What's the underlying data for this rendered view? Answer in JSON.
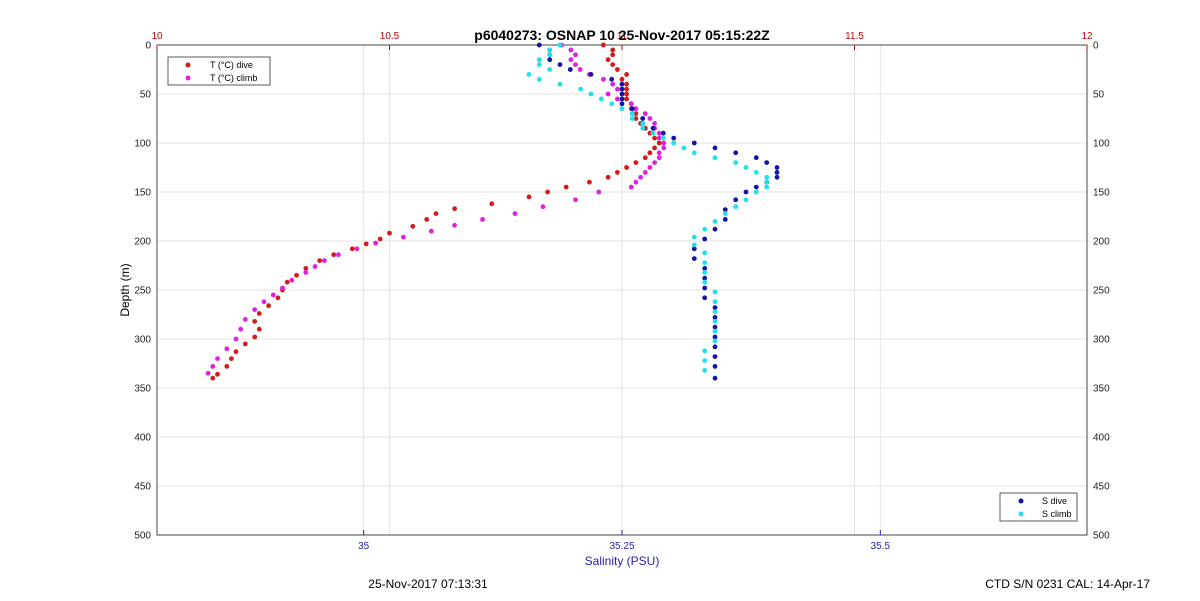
{
  "chart_data": {
    "type": "scatter",
    "title": "p6040273: OSNAP 10 25-Nov-2017 05:15:22Z",
    "xlabel_bottom": "Salinity (PSU)",
    "ylabel": "Depth (m)",
    "footer_left": "25-Nov-2017 07:13:31",
    "footer_right": "CTD S/N 0231  CAL: 14-Apr-17",
    "grid": true,
    "y_reversed": true,
    "ylim": [
      0,
      500
    ],
    "y_ticks": [
      "0",
      "50",
      "100",
      "150",
      "200",
      "250",
      "300",
      "350",
      "400",
      "450",
      "500"
    ],
    "temp_axis": {
      "range": [
        10,
        12
      ],
      "ticks": [
        10,
        10.5,
        11,
        11.5,
        12
      ],
      "tick_labels": [
        "10",
        "10.5",
        "11",
        "11.5",
        "12"
      ],
      "color": "#cc0000"
    },
    "sal_axis": {
      "range": [
        34.8,
        35.7
      ],
      "ticks": [
        35,
        35.25,
        35.5
      ],
      "tick_labels": [
        "35",
        "35.25",
        "35.5"
      ],
      "color": "#1f1fb4"
    },
    "legends": [
      {
        "placement": "top-left",
        "entries": [
          "T (°C) dive",
          "T (°C) climb"
        ]
      },
      {
        "placement": "bottom-right",
        "entries": [
          "S dive",
          "S climb"
        ]
      }
    ],
    "series": [
      {
        "name": "T (°C) dive",
        "axis": "temp",
        "color": "#d61a1a",
        "points": [
          [
            10.96,
            0
          ],
          [
            10.98,
            5
          ],
          [
            10.98,
            10
          ],
          [
            10.97,
            15
          ],
          [
            10.98,
            20
          ],
          [
            10.99,
            25
          ],
          [
            11.01,
            30
          ],
          [
            11.0,
            35
          ],
          [
            11.01,
            40
          ],
          [
            11.01,
            45
          ],
          [
            11.01,
            50
          ],
          [
            11.01,
            55
          ],
          [
            11.02,
            60
          ],
          [
            11.02,
            65
          ],
          [
            11.03,
            70
          ],
          [
            11.03,
            75
          ],
          [
            11.04,
            80
          ],
          [
            11.05,
            85
          ],
          [
            11.06,
            90
          ],
          [
            11.07,
            95
          ],
          [
            11.08,
            100
          ],
          [
            11.07,
            105
          ],
          [
            11.06,
            110
          ],
          [
            11.05,
            115
          ],
          [
            11.03,
            120
          ],
          [
            11.01,
            125
          ],
          [
            10.99,
            130
          ],
          [
            10.97,
            135
          ],
          [
            10.93,
            140
          ],
          [
            10.88,
            145
          ],
          [
            10.84,
            150
          ],
          [
            10.8,
            155
          ],
          [
            10.72,
            162
          ],
          [
            10.64,
            167
          ],
          [
            10.6,
            172
          ],
          [
            10.58,
            178
          ],
          [
            10.55,
            185
          ],
          [
            10.5,
            192
          ],
          [
            10.48,
            198
          ],
          [
            10.45,
            203
          ],
          [
            10.42,
            208
          ],
          [
            10.38,
            214
          ],
          [
            10.35,
            220
          ],
          [
            10.32,
            228
          ],
          [
            10.3,
            235
          ],
          [
            10.28,
            242
          ],
          [
            10.27,
            250
          ],
          [
            10.26,
            258
          ],
          [
            10.24,
            266
          ],
          [
            10.22,
            274
          ],
          [
            10.21,
            282
          ],
          [
            10.22,
            290
          ],
          [
            10.21,
            298
          ],
          [
            10.19,
            305
          ],
          [
            10.17,
            313
          ],
          [
            10.16,
            320
          ],
          [
            10.15,
            328
          ],
          [
            10.13,
            336
          ],
          [
            10.12,
            340
          ]
        ]
      },
      {
        "name": "T (°C) climb",
        "axis": "temp",
        "color": "#e020e0",
        "points": [
          [
            10.87,
            0
          ],
          [
            10.89,
            5
          ],
          [
            10.9,
            10
          ],
          [
            10.89,
            15
          ],
          [
            10.9,
            20
          ],
          [
            10.91,
            25
          ],
          [
            10.93,
            30
          ],
          [
            10.96,
            35
          ],
          [
            10.98,
            40
          ],
          [
            10.99,
            45
          ],
          [
            10.97,
            50
          ],
          [
            10.99,
            55
          ],
          [
            11.02,
            60
          ],
          [
            11.03,
            65
          ],
          [
            11.05,
            70
          ],
          [
            11.06,
            75
          ],
          [
            11.07,
            80
          ],
          [
            11.07,
            85
          ],
          [
            11.08,
            90
          ],
          [
            11.08,
            95
          ],
          [
            11.09,
            100
          ],
          [
            11.09,
            105
          ],
          [
            11.08,
            110
          ],
          [
            11.08,
            115
          ],
          [
            11.07,
            120
          ],
          [
            11.06,
            125
          ],
          [
            11.05,
            130
          ],
          [
            11.04,
            135
          ],
          [
            11.03,
            140
          ],
          [
            11.02,
            145
          ],
          [
            10.95,
            150
          ],
          [
            10.9,
            158
          ],
          [
            10.83,
            165
          ],
          [
            10.77,
            172
          ],
          [
            10.7,
            178
          ],
          [
            10.64,
            184
          ],
          [
            10.59,
            190
          ],
          [
            10.53,
            196
          ],
          [
            10.47,
            202
          ],
          [
            10.43,
            208
          ],
          [
            10.39,
            214
          ],
          [
            10.36,
            220
          ],
          [
            10.34,
            226
          ],
          [
            10.32,
            232
          ],
          [
            10.29,
            240
          ],
          [
            10.27,
            248
          ],
          [
            10.25,
            255
          ],
          [
            10.23,
            262
          ],
          [
            10.21,
            270
          ],
          [
            10.19,
            280
          ],
          [
            10.18,
            290
          ],
          [
            10.17,
            300
          ],
          [
            10.15,
            310
          ],
          [
            10.13,
            320
          ],
          [
            10.12,
            328
          ],
          [
            10.11,
            335
          ]
        ]
      },
      {
        "name": "S dive",
        "axis": "sal",
        "color": "#1414a8",
        "points": [
          [
            35.17,
            0
          ],
          [
            35.18,
            5
          ],
          [
            35.18,
            10
          ],
          [
            35.18,
            15
          ],
          [
            35.19,
            20
          ],
          [
            35.2,
            25
          ],
          [
            35.22,
            30
          ],
          [
            35.24,
            35
          ],
          [
            35.25,
            40
          ],
          [
            35.25,
            45
          ],
          [
            35.25,
            50
          ],
          [
            35.25,
            55
          ],
          [
            35.25,
            60
          ],
          [
            35.26,
            65
          ],
          [
            35.26,
            70
          ],
          [
            35.27,
            75
          ],
          [
            35.27,
            80
          ],
          [
            35.28,
            85
          ],
          [
            35.29,
            90
          ],
          [
            35.3,
            95
          ],
          [
            35.32,
            100
          ],
          [
            35.34,
            105
          ],
          [
            35.36,
            110
          ],
          [
            35.38,
            115
          ],
          [
            35.39,
            120
          ],
          [
            35.4,
            125
          ],
          [
            35.4,
            130
          ],
          [
            35.4,
            135
          ],
          [
            35.39,
            140
          ],
          [
            35.38,
            145
          ],
          [
            35.37,
            150
          ],
          [
            35.36,
            158
          ],
          [
            35.35,
            168
          ],
          [
            35.35,
            178
          ],
          [
            35.34,
            188
          ],
          [
            35.33,
            198
          ],
          [
            35.32,
            208
          ],
          [
            35.32,
            218
          ],
          [
            35.33,
            228
          ],
          [
            35.33,
            238
          ],
          [
            35.33,
            248
          ],
          [
            35.33,
            258
          ],
          [
            35.34,
            268
          ],
          [
            35.34,
            278
          ],
          [
            35.34,
            288
          ],
          [
            35.34,
            298
          ],
          [
            35.34,
            308
          ],
          [
            35.34,
            318
          ],
          [
            35.34,
            328
          ],
          [
            35.34,
            340
          ]
        ]
      },
      {
        "name": "S climb",
        "axis": "sal",
        "color": "#20e0e8",
        "points": [
          [
            35.19,
            0
          ],
          [
            35.18,
            5
          ],
          [
            35.18,
            10
          ],
          [
            35.17,
            15
          ],
          [
            35.17,
            20
          ],
          [
            35.18,
            25
          ],
          [
            35.16,
            30
          ],
          [
            35.17,
            35
          ],
          [
            35.19,
            40
          ],
          [
            35.21,
            45
          ],
          [
            35.22,
            50
          ],
          [
            35.23,
            55
          ],
          [
            35.24,
            60
          ],
          [
            35.25,
            65
          ],
          [
            35.26,
            70
          ],
          [
            35.26,
            75
          ],
          [
            35.27,
            80
          ],
          [
            35.27,
            85
          ],
          [
            35.28,
            90
          ],
          [
            35.29,
            95
          ],
          [
            35.3,
            100
          ],
          [
            35.31,
            105
          ],
          [
            35.32,
            110
          ],
          [
            35.34,
            115
          ],
          [
            35.36,
            120
          ],
          [
            35.37,
            125
          ],
          [
            35.38,
            130
          ],
          [
            35.39,
            135
          ],
          [
            35.39,
            140
          ],
          [
            35.39,
            145
          ],
          [
            35.38,
            150
          ],
          [
            35.37,
            158
          ],
          [
            35.36,
            165
          ],
          [
            35.35,
            172
          ],
          [
            35.34,
            180
          ],
          [
            35.33,
            188
          ],
          [
            35.32,
            196
          ],
          [
            35.32,
            204
          ],
          [
            35.33,
            212
          ],
          [
            35.33,
            222
          ],
          [
            35.33,
            232
          ],
          [
            35.33,
            242
          ],
          [
            35.34,
            252
          ],
          [
            35.34,
            262
          ],
          [
            35.34,
            272
          ],
          [
            35.34,
            282
          ],
          [
            35.34,
            292
          ],
          [
            35.34,
            302
          ],
          [
            35.33,
            312
          ],
          [
            35.33,
            322
          ],
          [
            35.33,
            332
          ]
        ]
      }
    ]
  }
}
